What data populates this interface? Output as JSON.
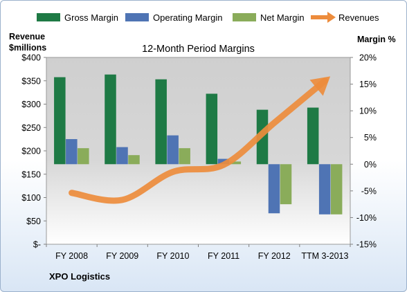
{
  "chart_data": {
    "type": "bar",
    "title": "12-Month Period Margins",
    "company": "XPO Logistics",
    "ylabel_left": [
      "Revenue",
      "$millions"
    ],
    "ylabel_right": "Margin %",
    "categories": [
      "FY 2008",
      "FY 2009",
      "FY 2010",
      "FY 2011",
      "FY 2012",
      "TTM 3-2013"
    ],
    "ylim_left": [
      0,
      400
    ],
    "ylim_right": [
      -15,
      20
    ],
    "left_ticks": [
      "$400",
      "$350",
      "$300",
      "$250",
      "$200",
      "$150",
      "$100",
      "$50",
      "$-"
    ],
    "right_ticks": [
      "20%",
      "15%",
      "10%",
      "5%",
      "0%",
      "-5%",
      "-10%",
      "-15%"
    ],
    "series": [
      {
        "name": "Gross Margin",
        "axis": "right",
        "color": "#1e7a45",
        "values": [
          16.3,
          16.8,
          15.9,
          13.2,
          10.2,
          10.6
        ]
      },
      {
        "name": "Operating Margin",
        "axis": "right",
        "color": "#4f74b4",
        "values": [
          4.7,
          3.2,
          5.4,
          1.0,
          -9.2,
          -9.4
        ]
      },
      {
        "name": "Net Margin",
        "axis": "right",
        "color": "#8aac5a",
        "values": [
          3.0,
          1.7,
          3.0,
          0.5,
          -7.5,
          -9.4
        ]
      },
      {
        "name": "Revenues",
        "axis": "left",
        "type": "line",
        "color": "#ed8c3c",
        "values": [
          110,
          95,
          155,
          170,
          260,
          350
        ]
      }
    ],
    "legend_position": "top",
    "grid": false
  }
}
